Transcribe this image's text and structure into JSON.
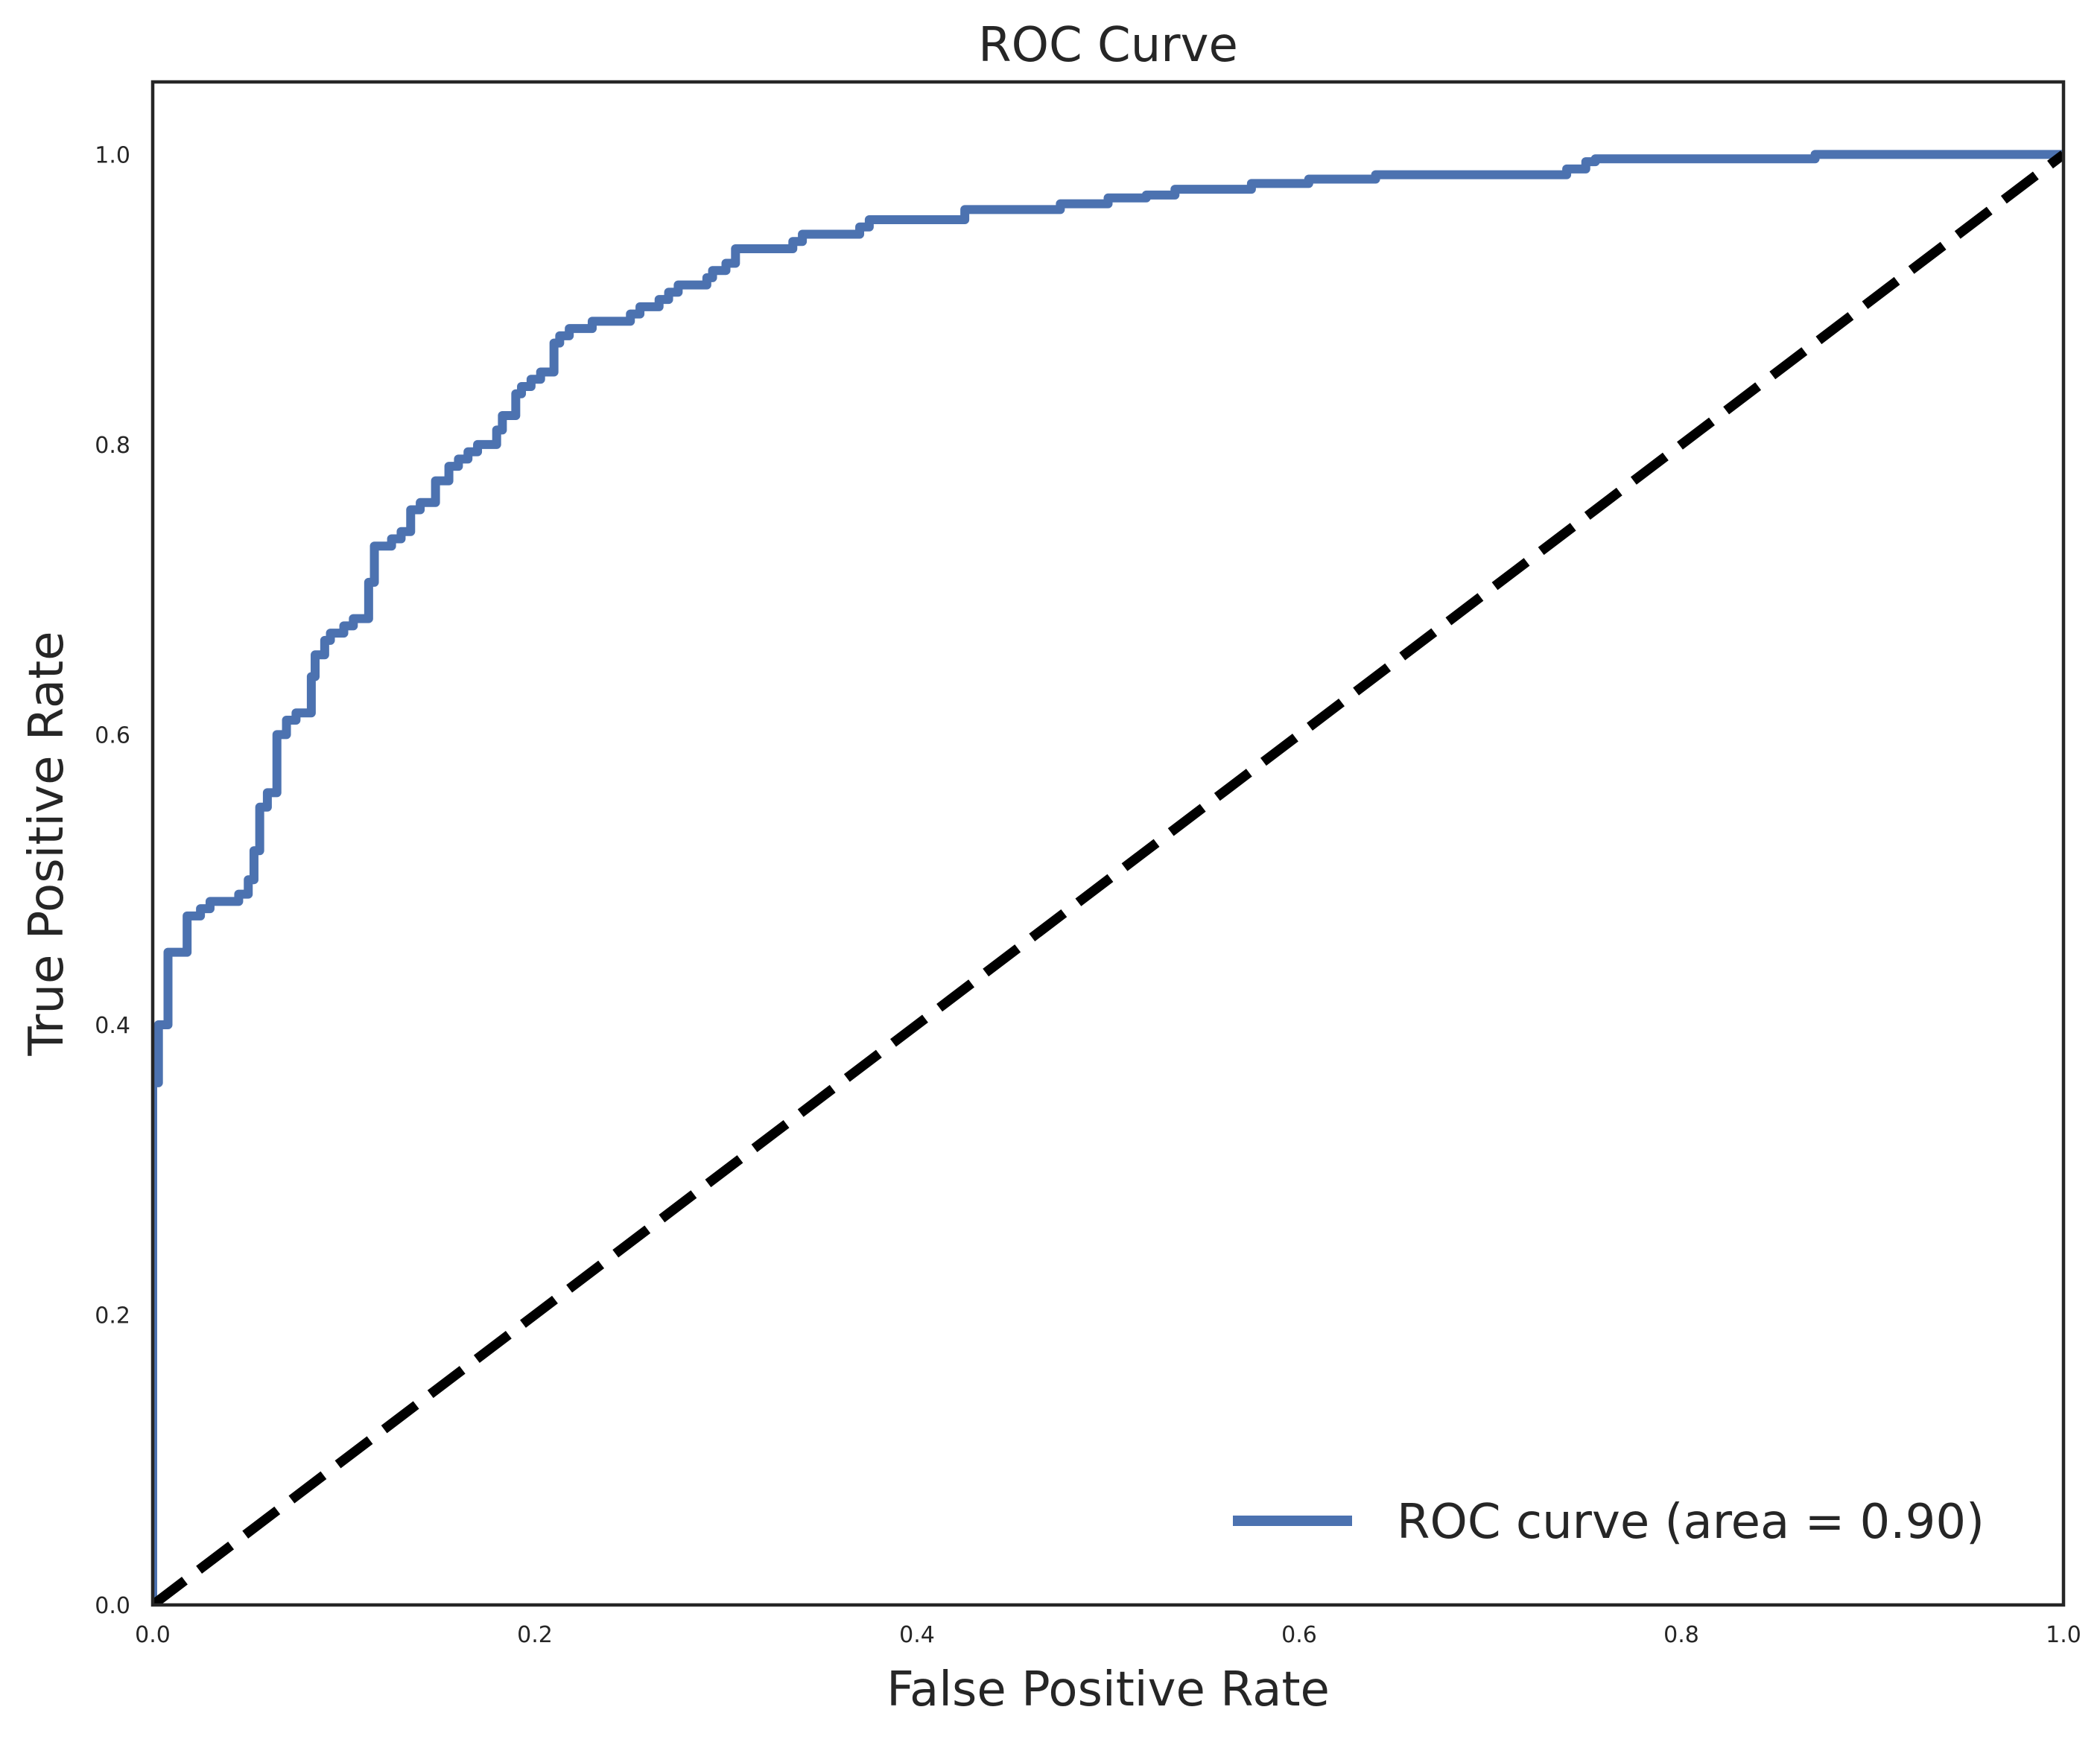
{
  "chart_data": {
    "type": "line",
    "title": "ROC Curve",
    "xlabel": "False Positive Rate",
    "ylabel": "True Positive Rate",
    "xlim": [
      0.0,
      1.0
    ],
    "ylim": [
      0.0,
      1.05
    ],
    "xticks": [
      "0.0",
      "0.2",
      "0.4",
      "0.6",
      "0.8",
      "1.0"
    ],
    "yticks": [
      "0.0",
      "0.2",
      "0.4",
      "0.6",
      "0.8",
      "1.0"
    ],
    "grid": false,
    "legend_position": "lower-right",
    "series": [
      {
        "name": "ROC curve (area = 0.90)",
        "style": "step",
        "color": "#4c72b0",
        "x": [
          0.0,
          0.0,
          0.003,
          0.003,
          0.008,
          0.008,
          0.018,
          0.018,
          0.025,
          0.025,
          0.03,
          0.03,
          0.045,
          0.045,
          0.05,
          0.05,
          0.053,
          0.053,
          0.056,
          0.056,
          0.06,
          0.06,
          0.065,
          0.065,
          0.07,
          0.07,
          0.075,
          0.075,
          0.083,
          0.083,
          0.085,
          0.085,
          0.09,
          0.09,
          0.093,
          0.093,
          0.1,
          0.1,
          0.105,
          0.105,
          0.113,
          0.113,
          0.116,
          0.116,
          0.12,
          0.12,
          0.125,
          0.125,
          0.13,
          0.13,
          0.135,
          0.135,
          0.14,
          0.14,
          0.148,
          0.148,
          0.155,
          0.155,
          0.16,
          0.16,
          0.165,
          0.165,
          0.17,
          0.17,
          0.18,
          0.18,
          0.183,
          0.183,
          0.19,
          0.19,
          0.193,
          0.193,
          0.198,
          0.198,
          0.203,
          0.203,
          0.21,
          0.21,
          0.213,
          0.213,
          0.218,
          0.218,
          0.23,
          0.23,
          0.25,
          0.25,
          0.255,
          0.255,
          0.265,
          0.265,
          0.27,
          0.27,
          0.275,
          0.275,
          0.29,
          0.29,
          0.293,
          0.293,
          0.3,
          0.3,
          0.305,
          0.305,
          0.335,
          0.335,
          0.34,
          0.34,
          0.37,
          0.37,
          0.375,
          0.375,
          0.425,
          0.425,
          0.475,
          0.475,
          0.5,
          0.5,
          0.52,
          0.52,
          0.535,
          0.535,
          0.575,
          0.575,
          0.605,
          0.605,
          0.64,
          0.64,
          0.74,
          0.74,
          0.75,
          0.75,
          0.755,
          0.755,
          0.87,
          0.87,
          1.0
        ],
        "y": [
          0.0,
          0.36,
          0.36,
          0.4,
          0.4,
          0.45,
          0.45,
          0.475,
          0.475,
          0.48,
          0.48,
          0.485,
          0.485,
          0.49,
          0.49,
          0.5,
          0.5,
          0.52,
          0.52,
          0.55,
          0.55,
          0.56,
          0.56,
          0.6,
          0.6,
          0.61,
          0.61,
          0.615,
          0.615,
          0.64,
          0.64,
          0.655,
          0.655,
          0.665,
          0.665,
          0.67,
          0.67,
          0.675,
          0.675,
          0.68,
          0.68,
          0.705,
          0.705,
          0.73,
          0.73,
          0.73,
          0.73,
          0.735,
          0.735,
          0.74,
          0.74,
          0.755,
          0.755,
          0.76,
          0.76,
          0.775,
          0.775,
          0.785,
          0.785,
          0.79,
          0.79,
          0.795,
          0.795,
          0.8,
          0.8,
          0.81,
          0.81,
          0.82,
          0.82,
          0.835,
          0.835,
          0.84,
          0.84,
          0.845,
          0.845,
          0.85,
          0.85,
          0.87,
          0.87,
          0.875,
          0.875,
          0.88,
          0.88,
          0.885,
          0.885,
          0.89,
          0.89,
          0.895,
          0.895,
          0.9,
          0.9,
          0.905,
          0.905,
          0.91,
          0.91,
          0.915,
          0.915,
          0.92,
          0.92,
          0.925,
          0.925,
          0.935,
          0.935,
          0.94,
          0.94,
          0.945,
          0.945,
          0.95,
          0.95,
          0.955,
          0.955,
          0.962,
          0.962,
          0.966,
          0.966,
          0.97,
          0.97,
          0.972,
          0.972,
          0.976,
          0.976,
          0.98,
          0.98,
          0.983,
          0.983,
          0.986,
          0.986,
          0.99,
          0.99,
          0.995,
          0.995,
          0.997,
          0.997,
          1.0,
          1.0
        ]
      },
      {
        "name": "",
        "style": "dashed",
        "color": "#000000",
        "x": [
          0.0,
          1.0
        ],
        "y": [
          0.0,
          1.0
        ]
      }
    ]
  }
}
